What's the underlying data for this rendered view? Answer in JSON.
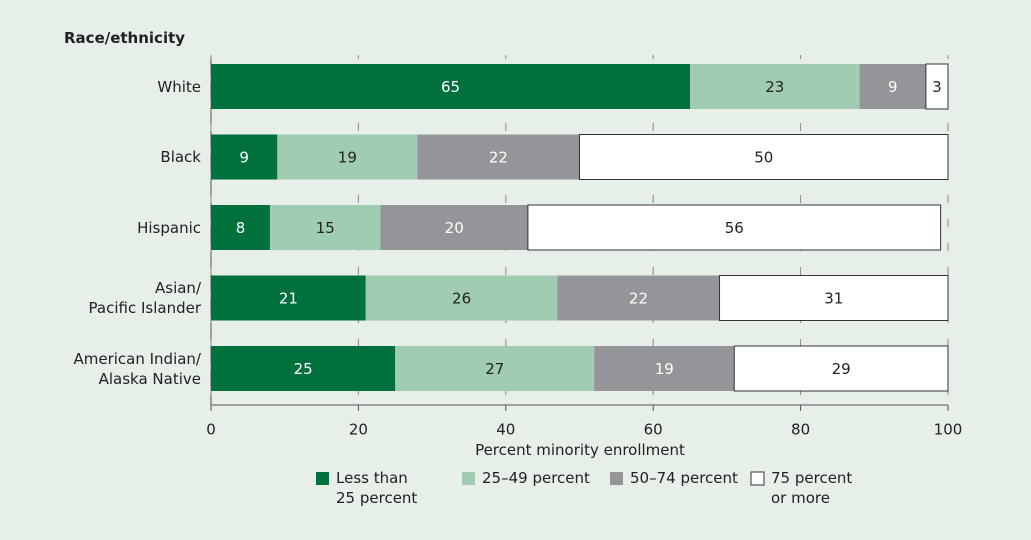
{
  "chart_data": {
    "type": "stacked-bar-horizontal",
    "y_axis_title": "Race/ethnicity",
    "x_axis_title": "Percent minority enrollment",
    "categories": [
      "White",
      "Black",
      "Hispanic",
      "Asian/\nPacific Islander",
      "American Indian/\nAlaska Native"
    ],
    "series": [
      {
        "name": "Less than\n25 percent",
        "color": "#00703c",
        "values": [
          65,
          9,
          8,
          21,
          25
        ]
      },
      {
        "name": "25–49 percent",
        "color": "#a0ccb2",
        "values": [
          23,
          19,
          15,
          26,
          27
        ]
      },
      {
        "name": "50–74 percent",
        "color": "#939598",
        "values": [
          9,
          22,
          20,
          22,
          19
        ]
      },
      {
        "name": "75 percent\nor more",
        "color": "#ffffff",
        "values": [
          3,
          50,
          56,
          31,
          29
        ]
      }
    ],
    "xlim": [
      0,
      100
    ],
    "xticks": [
      0,
      20,
      40,
      60,
      80,
      100
    ]
  }
}
